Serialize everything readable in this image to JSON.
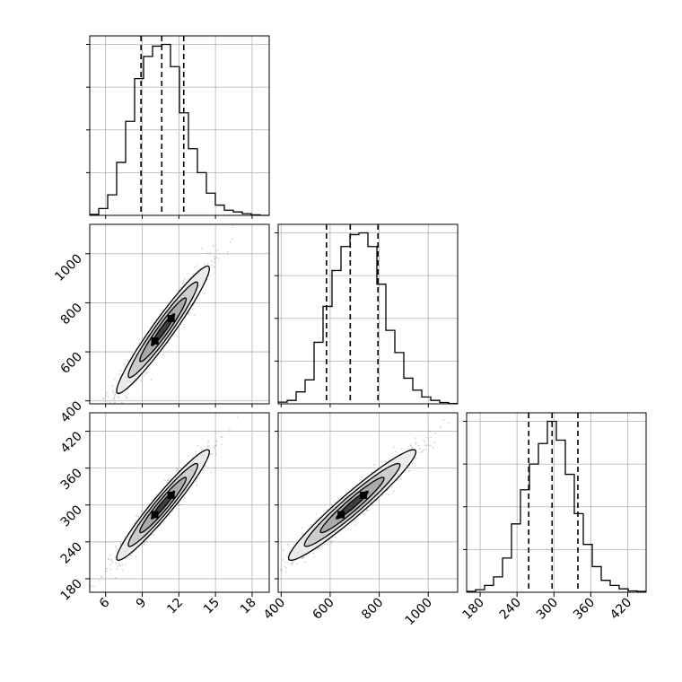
{
  "chart_data": {
    "type": "corner",
    "title": "",
    "parameters": [
      "",
      "",
      ""
    ],
    "grid": true,
    "colors": {
      "line": "#000000",
      "points": "#808080",
      "contour_light": "#ebebeb",
      "contour_mid": "#a6a6a6",
      "contour_dark": "#333333"
    },
    "quantiles": [
      {
        "param": 0,
        "values": [
          8.9,
          10.6,
          12.4
        ]
      },
      {
        "param": 1,
        "values": [
          585,
          682,
          795
        ]
      },
      {
        "param": 2,
        "values": [
          259,
          297,
          339
        ]
      }
    ],
    "ranges": [
      [
        4.7,
        19.4
      ],
      [
        388,
        1120
      ],
      [
        158,
        450
      ]
    ],
    "ticks": [
      [
        6,
        9,
        12,
        15,
        18
      ],
      [
        400,
        600,
        800,
        1000
      ],
      [
        180,
        240,
        300,
        360,
        420
      ]
    ],
    "tick_labels": [
      [
        "6",
        "9",
        "12",
        "15",
        "18"
      ],
      [
        "400",
        "600",
        "800",
        "1000"
      ],
      [
        "180",
        "240",
        "300",
        "360",
        "420"
      ]
    ],
    "histograms": [
      {
        "param": 0,
        "bins": [
          4.7,
          5.435,
          6.17,
          6.905,
          7.64,
          8.375,
          9.11,
          9.845,
          10.58,
          11.315,
          12.05,
          12.785,
          13.52,
          14.255,
          14.99,
          15.725,
          16.46,
          17.195,
          17.93,
          18.665,
          19.4
        ],
        "counts": [
          0.006,
          0.04,
          0.12,
          0.31,
          0.55,
          0.8,
          0.93,
          0.99,
          1.0,
          0.87,
          0.6,
          0.39,
          0.25,
          0.13,
          0.06,
          0.03,
          0.02,
          0.01,
          0.003,
          0.0
        ]
      },
      {
        "param": 1,
        "bins": [
          388,
          424.6,
          461.2,
          497.8,
          534.4,
          571,
          607.6,
          644.2,
          680.8,
          717.4,
          754,
          790.6,
          827.2,
          863.8,
          900.4,
          937,
          973.6,
          1010.2,
          1046.8,
          1083.4,
          1120
        ],
        "counts": [
          0.01,
          0.02,
          0.07,
          0.14,
          0.36,
          0.57,
          0.78,
          0.92,
          0.99,
          1.0,
          0.92,
          0.7,
          0.43,
          0.3,
          0.15,
          0.08,
          0.04,
          0.02,
          0.008,
          0.002
        ]
      },
      {
        "param": 2,
        "bins": [
          158,
          172.6,
          187.2,
          201.8,
          216.4,
          231,
          245.6,
          260.2,
          274.8,
          289.4,
          304,
          318.6,
          333.2,
          347.8,
          362.4,
          377,
          391.6,
          406.2,
          420.8,
          435.4,
          450
        ],
        "counts": [
          0.005,
          0.015,
          0.04,
          0.09,
          0.2,
          0.4,
          0.6,
          0.75,
          0.87,
          1.0,
          0.89,
          0.69,
          0.46,
          0.28,
          0.15,
          0.07,
          0.04,
          0.02,
          0.008,
          0.005
        ]
      }
    ],
    "pairs": [
      {
        "x_param": 0,
        "y_param": 1,
        "mean": [
          10.7,
          690
        ],
        "sd": [
          1.9,
          130
        ],
        "corr": 0.96
      },
      {
        "x_param": 0,
        "y_param": 2,
        "mean": [
          10.7,
          300
        ],
        "sd": [
          1.9,
          45
        ],
        "corr": 0.96
      },
      {
        "x_param": 1,
        "y_param": 2,
        "mean": [
          690,
          300
        ],
        "sd": [
          130,
          45
        ],
        "corr": 0.96
      }
    ]
  }
}
